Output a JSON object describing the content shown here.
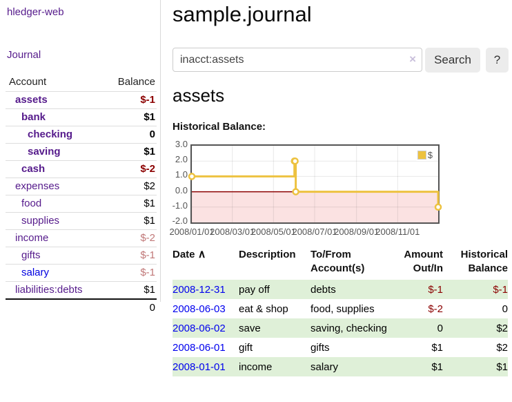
{
  "app_title": "hledger-web",
  "colors": {
    "link_purple": "#551a8b",
    "link_blue": "#0000e0",
    "negative_strong": "#8b0000",
    "negative_soft": "#c17878",
    "row_green": "#dff0d8",
    "chart_line": "#edc240",
    "chart_negative_fill": "#fbe2e2",
    "chart_zero_line": "#8b0000",
    "chart_border": "#545454"
  },
  "sidebar": {
    "journal_link": "Journal",
    "accounts": {
      "col_account": "Account",
      "col_balance": "Balance",
      "rows": [
        {
          "name": "assets",
          "level": 1,
          "bold": true,
          "balance": "$-1",
          "balance_class": "neg-strong"
        },
        {
          "name": "bank",
          "level": 2,
          "bold": true,
          "balance": "$1",
          "balance_class": "pos"
        },
        {
          "name": "checking",
          "level": 3,
          "bold": true,
          "balance": "0",
          "balance_class": "pos"
        },
        {
          "name": "saving",
          "level": 3,
          "bold": true,
          "balance": "$1",
          "balance_class": "pos"
        },
        {
          "name": "cash",
          "level": 2,
          "bold": true,
          "balance": "$-2",
          "balance_class": "neg-strong"
        },
        {
          "name": "expenses",
          "level": 1,
          "bold": false,
          "balance": "$2",
          "balance_class": "pos"
        },
        {
          "name": "food",
          "level": 2,
          "bold": false,
          "balance": "$1",
          "balance_class": "pos"
        },
        {
          "name": "supplies",
          "level": 2,
          "bold": false,
          "balance": "$1",
          "balance_class": "pos"
        },
        {
          "name": "income",
          "level": 1,
          "bold": false,
          "balance": "$-2",
          "balance_class": "neg-soft"
        },
        {
          "name": "gifts",
          "level": 2,
          "bold": false,
          "balance": "$-1",
          "balance_class": "neg-soft"
        },
        {
          "name": "salary",
          "level": 2,
          "bold": false,
          "blue": true,
          "balance": "$-1",
          "balance_class": "neg-soft"
        },
        {
          "name": "liabilities:debts",
          "level": 1,
          "bold": false,
          "balance": "$1",
          "balance_class": "pos"
        }
      ],
      "total": "0"
    }
  },
  "main": {
    "title": "sample.journal",
    "search": {
      "value": "inacct:assets",
      "clear_icon": "×",
      "search_button": "Search",
      "help_button": "?"
    },
    "heading": "assets",
    "chart_title": "Historical Balance:"
  },
  "chart_data": {
    "type": "line",
    "title": "Historical Balance",
    "step": true,
    "legend": [
      {
        "label": "$",
        "color": "#edc240"
      }
    ],
    "legend_position": "top-right",
    "x_start": "2008-01-01",
    "x_end": "2008-12-31",
    "points": [
      {
        "date": "2008-01-01",
        "value": 1
      },
      {
        "date": "2008-06-01",
        "value": 2
      },
      {
        "date": "2008-06-02",
        "value": 2
      },
      {
        "date": "2008-06-03",
        "value": 0
      },
      {
        "date": "2008-12-31",
        "value": -1
      }
    ],
    "ylim": [
      -2.0,
      3.0
    ],
    "ytick_labels": [
      "3.0",
      "2.0",
      "1.0",
      "0.0",
      "-1.0",
      "-2.0"
    ],
    "ytick_values": [
      3,
      2,
      1,
      0,
      -1,
      -2
    ],
    "grid": true,
    "xticks": [
      {
        "date": "2008-01-01",
        "label": "2008/01/01"
      },
      {
        "date": "2008-03-01",
        "label": "2008/03/01"
      },
      {
        "date": "2008-05-01",
        "label": "2008/05/01"
      },
      {
        "date": "2008-07-01",
        "label": "2008/07/01"
      },
      {
        "date": "2008-09-01",
        "label": "2008/09/01"
      },
      {
        "date": "2008-11-01",
        "label": "2008/11/01"
      }
    ]
  },
  "register": {
    "headers": {
      "date": "Date",
      "sort_indicator": "∧",
      "description": "Description",
      "account_l1": "To/From",
      "account_l2": "Account(s)",
      "amount_l1": "Amount",
      "amount_l2": "Out/In",
      "balance_l1": "Historical",
      "balance_l2": "Balance"
    },
    "rows": [
      {
        "date": "2008-12-31",
        "description": "pay off",
        "accounts": "debts",
        "amount": "$-1",
        "amount_negative": true,
        "balance": "$-1",
        "balance_negative": true,
        "shaded": true
      },
      {
        "date": "2008-06-03",
        "description": "eat & shop",
        "accounts": "food, supplies",
        "amount": "$-2",
        "amount_negative": true,
        "balance": "0",
        "balance_negative": false,
        "shaded": false
      },
      {
        "date": "2008-06-02",
        "description": "save",
        "accounts": "saving, checking",
        "amount": "0",
        "amount_negative": false,
        "balance": "$2",
        "balance_negative": false,
        "shaded": true
      },
      {
        "date": "2008-06-01",
        "description": "gift",
        "accounts": "gifts",
        "amount": "$1",
        "amount_negative": false,
        "balance": "$2",
        "balance_negative": false,
        "shaded": false
      },
      {
        "date": "2008-01-01",
        "description": "income",
        "accounts": "salary",
        "amount": "$1",
        "amount_negative": false,
        "balance": "$1",
        "balance_negative": false,
        "shaded": true
      }
    ]
  }
}
